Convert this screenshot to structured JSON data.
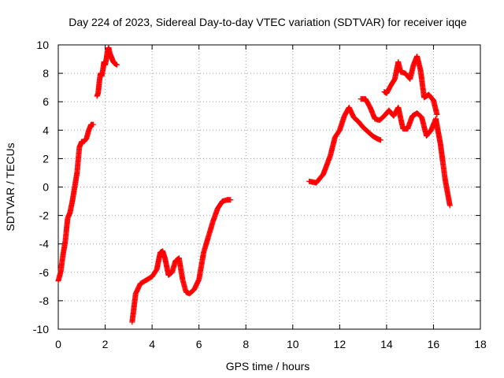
{
  "chart_data": {
    "type": "scatter",
    "title": "Day 224 of 2023, Sidereal Day-to-day VTEC variation (SDTVAR) for receiver iqqe",
    "xlabel": "GPS time / hours",
    "ylabel": "SDTVAR / TECUs",
    "xlim": [
      0,
      18
    ],
    "ylim": [
      -10,
      10
    ],
    "xticks": [
      0,
      2,
      4,
      6,
      8,
      10,
      12,
      14,
      16,
      18
    ],
    "yticks": [
      -10,
      -8,
      -6,
      -4,
      -2,
      0,
      2,
      4,
      6,
      8,
      10
    ],
    "grid": true,
    "marker": "plus",
    "color": "#ff0000",
    "series": [
      {
        "name": "segment-1",
        "x": [
          0.0,
          0.1,
          0.2,
          0.3,
          0.4,
          0.5,
          0.6,
          0.7,
          0.8,
          0.9,
          1.0,
          1.1,
          1.2,
          1.3,
          1.4,
          1.5
        ],
        "y": [
          -6.6,
          -6.0,
          -4.8,
          -3.8,
          -2.2,
          -1.8,
          -1.0,
          0.0,
          1.0,
          2.8,
          3.2,
          3.2,
          3.4,
          4.0,
          4.4,
          4.4
        ]
      },
      {
        "name": "segment-2",
        "x": [
          1.65,
          1.7,
          1.75,
          1.8,
          1.85,
          1.9,
          1.95,
          2.0,
          2.05,
          2.1,
          2.15,
          2.2,
          2.25,
          2.3,
          2.35,
          2.4,
          2.5
        ],
        "y": [
          6.4,
          6.6,
          7.4,
          8.0,
          7.8,
          8.2,
          8.8,
          8.6,
          9.0,
          9.6,
          9.8,
          9.4,
          9.2,
          9.0,
          8.8,
          8.7,
          8.6
        ]
      },
      {
        "name": "segment-3",
        "x": [
          3.15,
          3.3,
          3.5,
          3.8,
          4.0,
          4.2,
          4.35,
          4.45,
          4.55,
          4.7,
          4.85,
          5.0,
          5.15,
          5.3,
          5.45,
          5.6,
          5.8,
          6.0,
          6.2,
          6.4,
          6.6,
          6.8,
          7.0,
          7.2,
          7.35
        ],
        "y": [
          -9.5,
          -7.5,
          -6.8,
          -6.5,
          -6.3,
          -5.8,
          -4.6,
          -4.5,
          -5.0,
          -6.2,
          -6.0,
          -5.2,
          -5.0,
          -6.5,
          -7.4,
          -7.5,
          -7.2,
          -6.5,
          -4.6,
          -3.5,
          -2.4,
          -1.5,
          -1.0,
          -0.9,
          -0.9
        ]
      },
      {
        "name": "segment-4",
        "x": [
          10.7,
          11.0,
          11.3,
          11.6,
          11.8,
          12.0,
          12.2,
          12.4,
          12.6,
          12.8,
          13.0,
          13.2,
          13.4,
          13.6,
          13.75
        ],
        "y": [
          0.4,
          0.3,
          0.9,
          2.2,
          3.5,
          4.0,
          5.0,
          5.6,
          4.9,
          4.6,
          4.2,
          3.9,
          3.6,
          3.4,
          3.3
        ]
      },
      {
        "name": "segment-5",
        "x": [
          12.9,
          13.1,
          13.3,
          13.5,
          13.7,
          13.9,
          14.1,
          14.3,
          14.5,
          14.7,
          14.9,
          15.1,
          15.3,
          15.5,
          15.7,
          15.9,
          16.1,
          16.3,
          16.5,
          16.7
        ],
        "y": [
          6.2,
          6.2,
          5.6,
          4.8,
          4.7,
          5.0,
          5.4,
          5.0,
          5.6,
          4.1,
          4.1,
          5.0,
          5.2,
          4.9,
          3.6,
          4.0,
          4.8,
          3.0,
          0.5,
          -1.3
        ]
      },
      {
        "name": "segment-6",
        "x": [
          13.9,
          14.0,
          14.2,
          14.35,
          14.5,
          14.6,
          14.8,
          15.0,
          15.15,
          15.3,
          15.45,
          15.6,
          15.8,
          16.0,
          16.15
        ],
        "y": [
          6.7,
          6.6,
          7.2,
          7.6,
          8.8,
          8.1,
          8.0,
          7.6,
          8.6,
          9.2,
          8.2,
          6.3,
          6.5,
          6.1,
          5.1
        ]
      }
    ]
  }
}
